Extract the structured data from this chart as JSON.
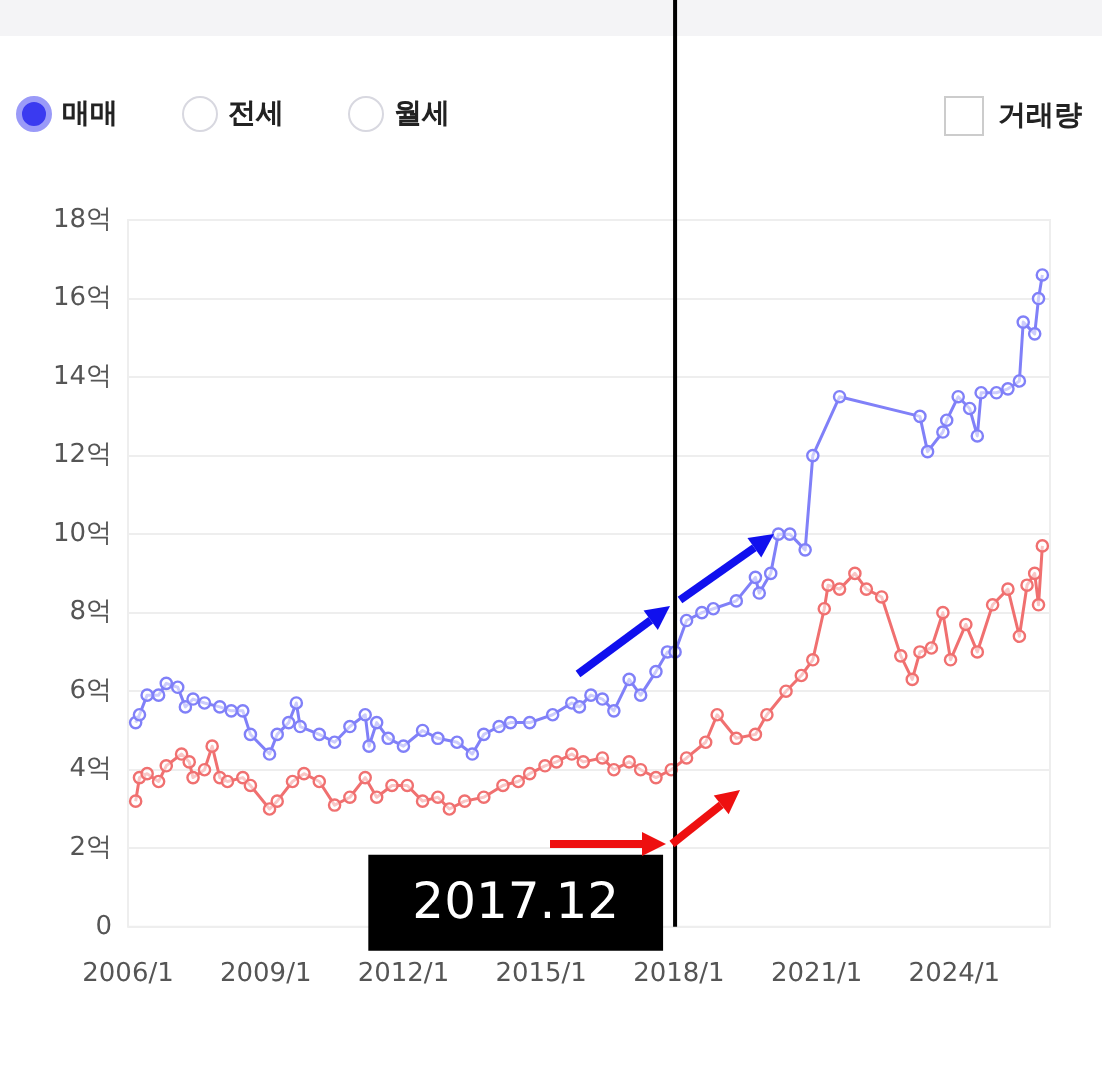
{
  "chart_data": {
    "type": "line",
    "annotations": [
      "매매",
      "전세",
      "월세",
      "거래량"
    ],
    "xlim": [
      "2006-01",
      "2026-02"
    ],
    "xticks": [
      {
        "value": "2006-01",
        "label": "2006/1"
      },
      {
        "value": "2009-01",
        "label": "2009/1"
      },
      {
        "value": "2012-01",
        "label": "2012/1"
      },
      {
        "value": "2015-01",
        "label": "2015/1"
      },
      {
        "value": "2018-01",
        "label": "2018/1"
      },
      {
        "value": "2021-01",
        "label": "2021/1"
      },
      {
        "value": "2024-01",
        "label": "2024/1"
      }
    ],
    "ylim": [
      0,
      18
    ],
    "yticks": [
      0,
      {
        "value": 2,
        "label": "2억"
      },
      {
        "value": 4,
        "label": "4억"
      },
      {
        "value": 6,
        "label": "6억"
      },
      {
        "value": 8,
        "label": "8억"
      },
      {
        "value": 10,
        "label": "10억"
      },
      {
        "value": 12,
        "label": "12억"
      },
      {
        "value": 14,
        "label": "14억"
      },
      {
        "value": 16,
        "label": "16억"
      },
      {
        "value": 18,
        "label": "18억"
      }
    ],
    "grid": "y",
    "legend": false,
    "marker": "circle",
    "line_style": "solid",
    "ref_lines": [
      {
        "axis": "x",
        "value": "2017-12",
        "label": "2017.12",
        "color": "#000000"
      }
    ],
    "series": [
      {
        "color": "#8080f8",
        "x": [
          "2006-03",
          "2006-04",
          "2006-06",
          "2006-09",
          "2006-11",
          "2007-02",
          "2007-04",
          "2007-06",
          "2007-09",
          "2008-01",
          "2008-04",
          "2008-07",
          "2008-09",
          "2009-02",
          "2009-04",
          "2009-07",
          "2009-09",
          "2009-10",
          "2010-03",
          "2010-07",
          "2010-11",
          "2011-03",
          "2011-04",
          "2011-06",
          "2011-09",
          "2012-01",
          "2012-06",
          "2012-10",
          "2013-03",
          "2013-07",
          "2013-10",
          "2014-02",
          "2014-05",
          "2014-10",
          "2015-04",
          "2015-09",
          "2015-11",
          "2016-02",
          "2016-05",
          "2016-08",
          "2016-12",
          "2017-03",
          "2017-07",
          "2017-10",
          "2017-12",
          "2018-03",
          "2018-07",
          "2018-10",
          "2019-04",
          "2019-09",
          "2019-10",
          "2020-01",
          "2020-03",
          "2020-06",
          "2020-10",
          "2020-12",
          "2021-07",
          "2023-04",
          "2023-06",
          "2023-10",
          "2023-11",
          "2024-02",
          "2024-05",
          "2024-07",
          "2024-08",
          "2024-12",
          "2025-03",
          "2025-06",
          "2025-07",
          "2025-10",
          "2025-11",
          "2025-12"
        ],
        "values": [
          5.2,
          5.4,
          5.9,
          5.9,
          6.2,
          6.1,
          5.6,
          5.8,
          5.7,
          5.6,
          5.5,
          5.5,
          4.9,
          4.4,
          4.9,
          5.2,
          5.7,
          5.1,
          4.9,
          4.7,
          5.1,
          5.4,
          4.6,
          5.2,
          4.8,
          4.6,
          5.0,
          4.8,
          4.7,
          4.4,
          4.9,
          5.1,
          5.2,
          5.2,
          5.4,
          5.7,
          5.6,
          5.9,
          5.8,
          5.5,
          6.3,
          5.9,
          6.5,
          7.0,
          7.0,
          7.8,
          8.0,
          8.1,
          8.3,
          8.9,
          8.5,
          9.0,
          10.0,
          10.0,
          9.6,
          12.0,
          13.5,
          13.0,
          12.1,
          12.6,
          12.9,
          13.5,
          13.2,
          12.5,
          13.6,
          13.6,
          13.7,
          13.9,
          15.4,
          15.1,
          16.0,
          16.6
        ]
      },
      {
        "color": "#f07070",
        "x": [
          "2006-03",
          "2006-04",
          "2006-06",
          "2006-09",
          "2006-11",
          "2007-03",
          "2007-05",
          "2007-06",
          "2007-09",
          "2007-11",
          "2008-01",
          "2008-03",
          "2008-07",
          "2008-09",
          "2009-02",
          "2009-04",
          "2009-08",
          "2009-11",
          "2010-03",
          "2010-07",
          "2010-11",
          "2011-03",
          "2011-06",
          "2011-10",
          "2012-02",
          "2012-06",
          "2012-10",
          "2013-01",
          "2013-05",
          "2013-10",
          "2014-03",
          "2014-07",
          "2014-10",
          "2015-02",
          "2015-05",
          "2015-09",
          "2015-12",
          "2016-05",
          "2016-08",
          "2016-12",
          "2017-03",
          "2017-07",
          "2017-11",
          "2018-03",
          "2018-08",
          "2018-11",
          "2019-04",
          "2019-09",
          "2019-12",
          "2020-05",
          "2020-09",
          "2020-12",
          "2021-03",
          "2021-04",
          "2021-07",
          "2021-11",
          "2022-02",
          "2022-06",
          "2022-11",
          "2023-02",
          "2023-04",
          "2023-07",
          "2023-10",
          "2023-12",
          "2024-04",
          "2024-07",
          "2024-11",
          "2025-03",
          "2025-06",
          "2025-08",
          "2025-10",
          "2025-11",
          "2025-12"
        ],
        "values": [
          3.2,
          3.8,
          3.9,
          3.7,
          4.1,
          4.4,
          4.2,
          3.8,
          4.0,
          4.6,
          3.8,
          3.7,
          3.8,
          3.6,
          3.0,
          3.2,
          3.7,
          3.9,
          3.7,
          3.1,
          3.3,
          3.8,
          3.3,
          3.6,
          3.6,
          3.2,
          3.3,
          3.0,
          3.2,
          3.3,
          3.6,
          3.7,
          3.9,
          4.1,
          4.2,
          4.4,
          4.2,
          4.3,
          4.0,
          4.2,
          4.0,
          3.8,
          4.0,
          4.3,
          4.7,
          5.4,
          4.8,
          4.9,
          5.4,
          6.0,
          6.4,
          6.8,
          8.1,
          8.7,
          8.6,
          9.0,
          8.6,
          8.4,
          6.9,
          6.3,
          7.0,
          7.1,
          8.0,
          6.8,
          7.7,
          7.0,
          8.2,
          8.6,
          7.4,
          8.7,
          9.0,
          8.2,
          9.7
        ]
      }
    ]
  }
}
